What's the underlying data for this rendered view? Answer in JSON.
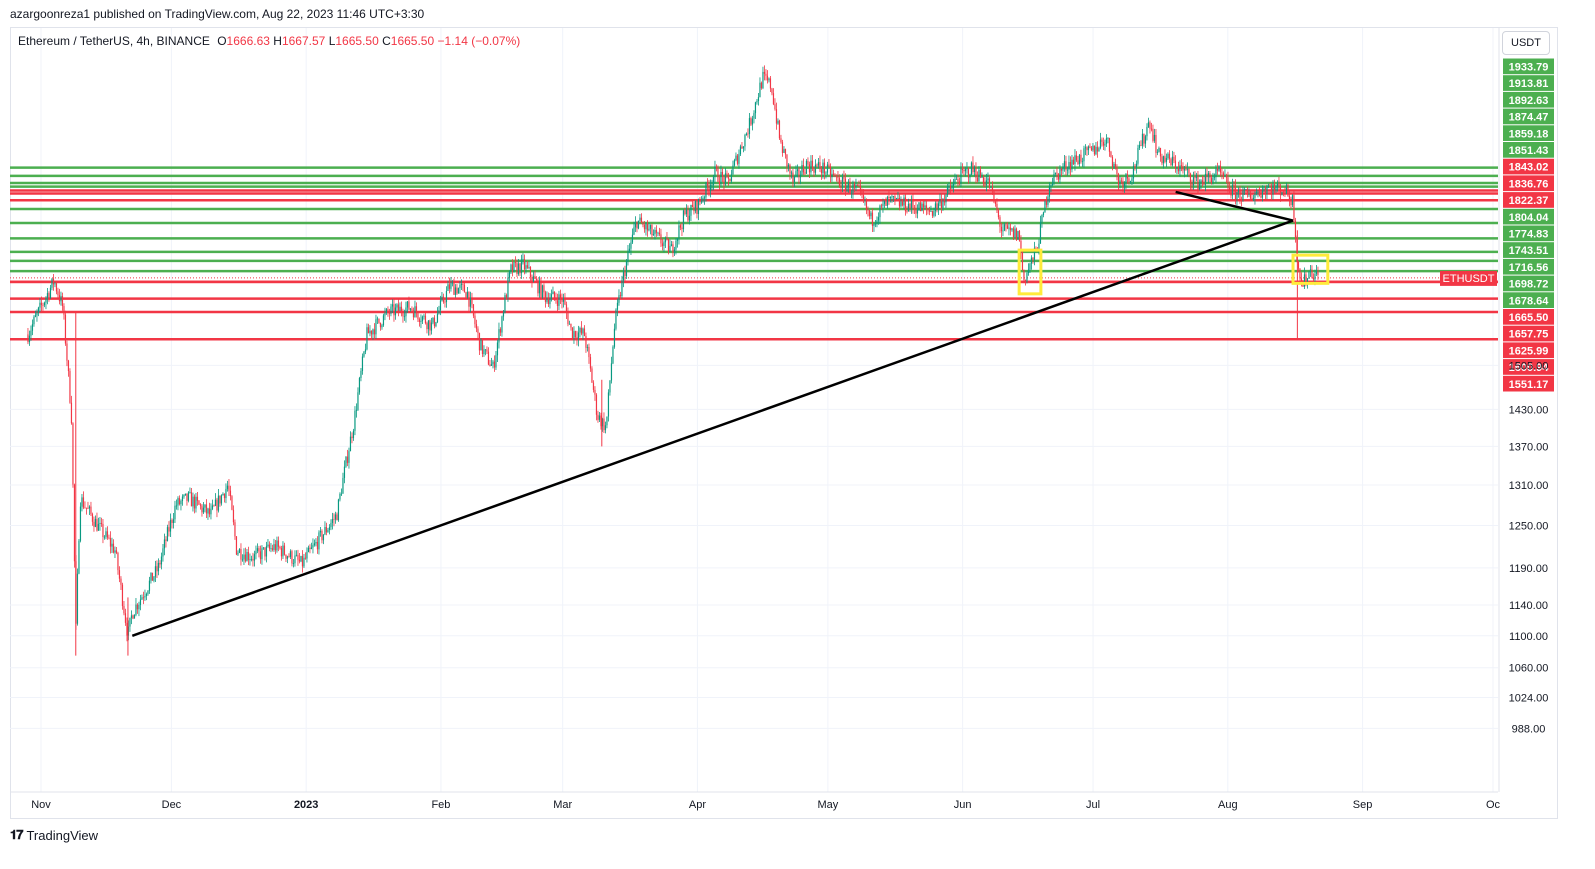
{
  "header": {
    "published": "azargoonreza1 published on TradingView.com, Aug 22, 2023 11:46 UTC+3:30"
  },
  "legend": {
    "symbol": "Ethereum / TetherUS, 4h, BINANCE",
    "o_label": "O",
    "o": "1666.63",
    "h_label": "H",
    "h": "1667.57",
    "l_label": "L",
    "l": "1665.50",
    "c_label": "C",
    "c": "1665.50",
    "change": "−1.14 (−0.07%)"
  },
  "currency_button": "USDT",
  "footer": {
    "brand": "TradingView",
    "logo": "tradingview-logo-icon"
  },
  "colors": {
    "green_level": "#4caf50",
    "red_level": "#f23645",
    "candle_up": "#089981",
    "candle_down": "#f23645",
    "trendline": "#000000",
    "highlight_box": "#ffeb3b"
  },
  "chart_data": {
    "type": "candlestick",
    "instrument": "ETHUSDT",
    "timeframe": "4h",
    "scale": "log",
    "x_ticks": [
      "Nov",
      "Dec",
      "2023",
      "Feb",
      "Mar",
      "Apr",
      "May",
      "Jun",
      "Jul",
      "Aug",
      "Sep",
      "Oc"
    ],
    "x_tick_dates": [
      "2022-11-01",
      "2022-12-01",
      "2023-01-01",
      "2023-02-01",
      "2023-03-01",
      "2023-04-01",
      "2023-05-01",
      "2023-06-01",
      "2023-07-01",
      "2023-08-01",
      "2023-09-01",
      "2023-10-01"
    ],
    "y_ticks": [
      1505.0,
      1430.0,
      1370.0,
      1310.0,
      1250.0,
      1190.0,
      1140.0,
      1100.0,
      1060.0,
      1024.0,
      988.0
    ],
    "last_price": {
      "label": "ETHUSDT",
      "value": "1665.50"
    },
    "green_levels": [
      "1933.79",
      "1913.81",
      "1892.63",
      "1874.47",
      "1859.18",
      "1851.43",
      "1804.04",
      "1774.83",
      "1743.51",
      "1716.56",
      "1698.72",
      "1678.64"
    ],
    "red_levels": [
      "1843.02",
      "1836.76",
      "1822.37",
      "1665.50",
      "1657.75",
      "1625.99",
      "1600.94",
      "1551.17"
    ],
    "price_anchors": [
      [
        "2022-10-29",
        1560
      ],
      [
        "2022-11-04",
        1660
      ],
      [
        "2022-11-06",
        1610
      ],
      [
        "2022-11-08",
        1420
      ],
      [
        "2022-11-09",
        1100
      ],
      [
        "2022-11-10",
        1290
      ],
      [
        "2022-11-14",
        1250
      ],
      [
        "2022-11-18",
        1215
      ],
      [
        "2022-11-21",
        1100
      ],
      [
        "2022-11-22",
        1130
      ],
      [
        "2022-11-28",
        1190
      ],
      [
        "2022-12-02",
        1280
      ],
      [
        "2022-12-05",
        1290
      ],
      [
        "2022-12-10",
        1265
      ],
      [
        "2022-12-14",
        1310
      ],
      [
        "2022-12-16",
        1215
      ],
      [
        "2022-12-20",
        1205
      ],
      [
        "2022-12-25",
        1220
      ],
      [
        "2022-12-31",
        1195
      ],
      [
        "2023-01-08",
        1265
      ],
      [
        "2023-01-12",
        1410
      ],
      [
        "2023-01-15",
        1560
      ],
      [
        "2023-01-20",
        1600
      ],
      [
        "2023-01-25",
        1610
      ],
      [
        "2023-01-30",
        1575
      ],
      [
        "2023-02-03",
        1650
      ],
      [
        "2023-02-07",
        1640
      ],
      [
        "2023-02-10",
        1540
      ],
      [
        "2023-02-13",
        1500
      ],
      [
        "2023-02-17",
        1680
      ],
      [
        "2023-02-20",
        1690
      ],
      [
        "2023-02-25",
        1630
      ],
      [
        "2023-03-01",
        1625
      ],
      [
        "2023-03-03",
        1565
      ],
      [
        "2023-03-06",
        1560
      ],
      [
        "2023-03-09",
        1420
      ],
      [
        "2023-03-11",
        1400
      ],
      [
        "2023-03-13",
        1580
      ],
      [
        "2023-03-15",
        1670
      ],
      [
        "2023-03-18",
        1780
      ],
      [
        "2023-03-22",
        1750
      ],
      [
        "2023-03-26",
        1720
      ],
      [
        "2023-03-29",
        1790
      ],
      [
        "2023-04-01",
        1810
      ],
      [
        "2023-04-05",
        1880
      ],
      [
        "2023-04-08",
        1860
      ],
      [
        "2023-04-13",
        1990
      ],
      [
        "2023-04-16",
        2100
      ],
      [
        "2023-04-18",
        2080
      ],
      [
        "2023-04-20",
        1950
      ],
      [
        "2023-04-23",
        1860
      ],
      [
        "2023-04-26",
        1900
      ],
      [
        "2023-04-30",
        1890
      ],
      [
        "2023-05-04",
        1860
      ],
      [
        "2023-05-08",
        1840
      ],
      [
        "2023-05-11",
        1780
      ],
      [
        "2023-05-15",
        1820
      ],
      [
        "2023-05-20",
        1810
      ],
      [
        "2023-05-25",
        1800
      ],
      [
        "2023-05-28",
        1830
      ],
      [
        "2023-05-31",
        1870
      ],
      [
        "2023-06-03",
        1890
      ],
      [
        "2023-06-07",
        1860
      ],
      [
        "2023-06-10",
        1760
      ],
      [
        "2023-06-14",
        1750
      ],
      [
        "2023-06-15",
        1660
      ],
      [
        "2023-06-18",
        1720
      ],
      [
        "2023-06-21",
        1860
      ],
      [
        "2023-06-25",
        1900
      ],
      [
        "2023-07-01",
        1930
      ],
      [
        "2023-07-04",
        1960
      ],
      [
        "2023-07-07",
        1860
      ],
      [
        "2023-07-10",
        1880
      ],
      [
        "2023-07-14",
        2000
      ],
      [
        "2023-07-16",
        1920
      ],
      [
        "2023-07-20",
        1900
      ],
      [
        "2023-07-25",
        1860
      ],
      [
        "2023-07-30",
        1880
      ],
      [
        "2023-08-02",
        1840
      ],
      [
        "2023-08-06",
        1830
      ],
      [
        "2023-08-10",
        1850
      ],
      [
        "2023-08-14",
        1845
      ],
      [
        "2023-08-16",
        1820
      ],
      [
        "2023-08-17",
        1700
      ],
      [
        "2023-08-18",
        1650
      ],
      [
        "2023-08-20",
        1680
      ],
      [
        "2023-08-22",
        1665.5
      ]
    ],
    "trendlines": [
      {
        "from": [
          "2022-11-22",
          1100
        ],
        "to": [
          "2023-08-16",
          1780
        ]
      },
      {
        "from": [
          "2023-07-20",
          1840
        ],
        "to": [
          "2023-08-16",
          1780
        ]
      }
    ],
    "highlight_boxes": [
      {
        "from": [
          "2023-06-14",
          1720
        ],
        "to": [
          "2023-06-19",
          1635
        ]
      },
      {
        "from": [
          "2023-08-16",
          1710
        ],
        "to": [
          "2023-08-24",
          1655
        ]
      }
    ]
  }
}
